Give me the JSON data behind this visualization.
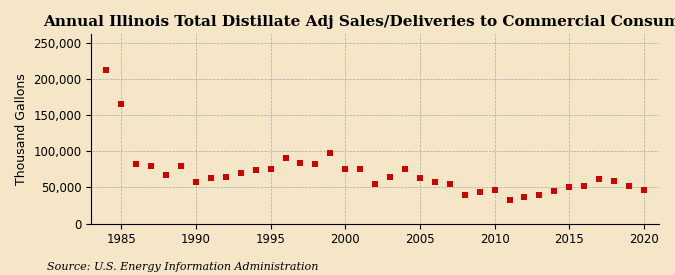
{
  "title": "Annual Illinois Total Distillate Adj Sales/Deliveries to Commercial Consumers",
  "ylabel": "Thousand Gallons",
  "source": "Source: U.S. Energy Information Administration",
  "background_color": "#f5e6c8",
  "plot_background_color": "#f5e6c8",
  "marker_color": "#cc0000",
  "marker": "s",
  "marker_size": 16,
  "years": [
    1984,
    1985,
    1986,
    1987,
    1988,
    1989,
    1990,
    1991,
    1992,
    1993,
    1994,
    1995,
    1996,
    1997,
    1998,
    1999,
    2000,
    2001,
    2002,
    2003,
    2004,
    2005,
    2006,
    2007,
    2008,
    2009,
    2010,
    2011,
    2012,
    2013,
    2014,
    2015,
    2016,
    2017,
    2018,
    2019,
    2020
  ],
  "values": [
    213000,
    165000,
    82000,
    79000,
    67000,
    79000,
    58000,
    63000,
    65000,
    70000,
    74000,
    75000,
    91000,
    84000,
    83000,
    97000,
    75000,
    75000,
    55000,
    65000,
    75000,
    63000,
    57000,
    55000,
    40000,
    43000,
    46000,
    33000,
    37000,
    40000,
    45000,
    50000,
    52000,
    61000,
    59000,
    52000,
    47000
  ],
  "xlim": [
    1983,
    2021
  ],
  "ylim": [
    0,
    262000
  ],
  "yticks": [
    0,
    50000,
    100000,
    150000,
    200000,
    250000
  ],
  "xticks": [
    1985,
    1990,
    1995,
    2000,
    2005,
    2010,
    2015,
    2020
  ],
  "title_fontsize": 11,
  "axis_fontsize": 9,
  "tick_fontsize": 8.5,
  "source_fontsize": 8
}
